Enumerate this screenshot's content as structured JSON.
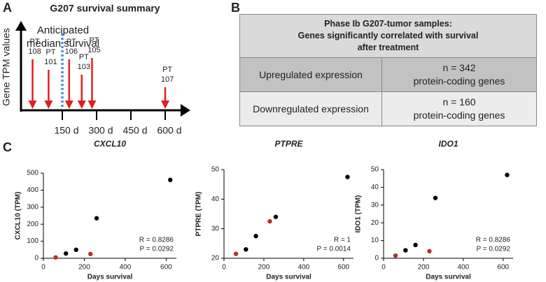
{
  "panel_a": {
    "letter": "A",
    "title": "G207 survival summary",
    "y_label": "Gene TPM values",
    "annotation": [
      "Anticipated",
      "median survival"
    ],
    "median_day": 150,
    "xticks": [
      {
        "value": 150,
        "label": "150 d"
      },
      {
        "value": 300,
        "label": "300 d"
      },
      {
        "value": 450,
        "label": "450 d"
      },
      {
        "value": 600,
        "label": "600 d"
      }
    ],
    "patients": [
      {
        "label": "PT",
        "id": "108",
        "day": 20
      },
      {
        "label": "PT",
        "id": "101",
        "day": 90
      },
      {
        "label": "PT",
        "id": "106",
        "day": 180
      },
      {
        "label": "PT",
        "id": "103",
        "day": 235
      },
      {
        "label": "PT",
        "id": "105",
        "day": 280
      },
      {
        "label": "PT",
        "id": "107",
        "day": 600
      }
    ]
  },
  "panel_b": {
    "letter": "B",
    "table": {
      "header": "Phase Ib G207-tumor samples:\nGenes significantly correlated with survival\nafter treatment",
      "rows": [
        [
          "Upregulated expression",
          "n = 342\nprotein-coding genes"
        ],
        [
          "Downregulated expression",
          "n = 160\nprotein-coding genes"
        ]
      ]
    }
  },
  "panel_c": {
    "letter": "C"
  },
  "chart_data": [
    {
      "type": "scatter",
      "title": "CXCL10",
      "x_label": "Days survival",
      "y_label": "CXCL10 (TPM)",
      "annotations": [
        "R = 0.8286",
        "P = 0.0292"
      ],
      "xlim": [
        0,
        650
      ],
      "xticks": [
        0,
        200,
        400,
        600
      ],
      "ylim": [
        0,
        500
      ],
      "yticks": [
        0,
        100,
        200,
        300,
        400,
        500
      ],
      "series": [
        {
          "color": "#000000",
          "x": [
            110,
            160,
            260,
            620
          ],
          "values": [
            28,
            50,
            235,
            460
          ]
        },
        {
          "color": "#b5302a",
          "x": [
            60,
            230
          ],
          "values": [
            5,
            25
          ]
        }
      ]
    },
    {
      "type": "scatter",
      "title": "PTPRE",
      "x_label": "Days survival",
      "y_label": "PTPRE (TPM)",
      "annotations": [
        "R = 1",
        "P = 0.0014"
      ],
      "xlim": [
        0,
        650
      ],
      "xticks": [
        0,
        200,
        400,
        600
      ],
      "ylim": [
        20,
        50
      ],
      "yticks": [
        20,
        30,
        40,
        50
      ],
      "series": [
        {
          "color": "#000000",
          "x": [
            110,
            160,
            260,
            620
          ],
          "values": [
            23,
            27.5,
            34,
            47.5
          ]
        },
        {
          "color": "#b5302a",
          "x": [
            60,
            230
          ],
          "values": [
            21.5,
            32.5
          ]
        }
      ]
    },
    {
      "type": "scatter",
      "title": "IDO1",
      "x_label": "Days survival",
      "y_label": "IDO1 (TPM)",
      "annotations": [
        "R = 0.8286",
        "P = 0.0292"
      ],
      "xlim": [
        0,
        650
      ],
      "xticks": [
        0,
        200,
        400,
        600
      ],
      "ylim": [
        0,
        50
      ],
      "yticks": [
        0,
        10,
        20,
        30,
        40,
        50
      ],
      "series": [
        {
          "color": "#000000",
          "x": [
            110,
            160,
            260,
            620
          ],
          "values": [
            4.5,
            7.5,
            34,
            47
          ]
        },
        {
          "color": "#b5302a",
          "x": [
            60,
            230
          ],
          "values": [
            1.5,
            4
          ]
        }
      ]
    }
  ]
}
